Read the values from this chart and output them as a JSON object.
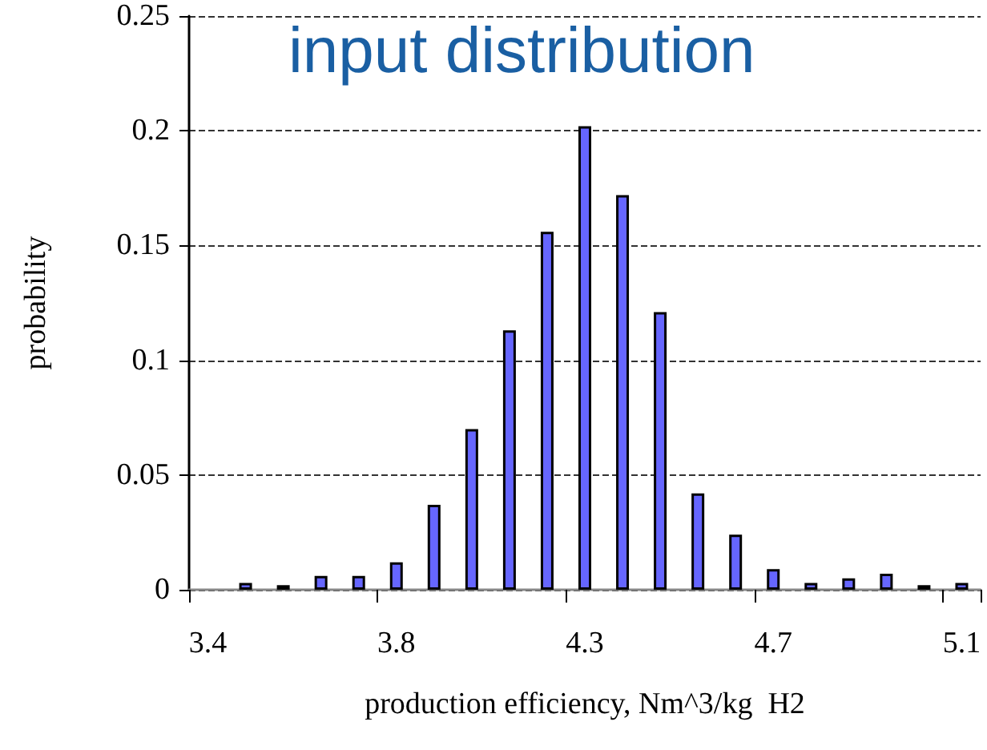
{
  "chart_data": {
    "type": "bar",
    "title": "input distribution",
    "xlabel": "production efficiency, Nm^3/kg  H2",
    "ylabel": "probability",
    "categories": [
      "3.4",
      null,
      null,
      null,
      null,
      "3.8",
      null,
      null,
      null,
      null,
      "4.3",
      null,
      null,
      null,
      null,
      "4.7",
      null,
      null,
      null,
      null,
      "5.1"
    ],
    "values": [
      null,
      0.003,
      0.002,
      0.006,
      0.006,
      0.012,
      0.037,
      0.07,
      0.113,
      0.156,
      0.202,
      0.172,
      0.121,
      0.042,
      0.024,
      0.009,
      0.003,
      0.005,
      0.007,
      0.002,
      0.003
    ],
    "color": "#6666ff",
    "ylim": [
      0,
      0.25
    ],
    "yticks": [
      0,
      0.05,
      0.1,
      0.15,
      0.2,
      0.25
    ],
    "grid": "y"
  }
}
